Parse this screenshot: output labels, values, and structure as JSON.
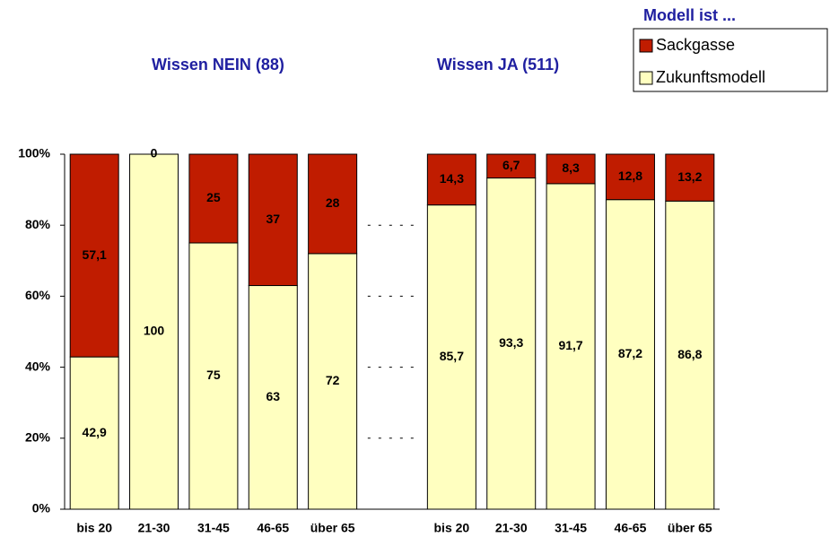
{
  "chart_data": {
    "type": "stacked_bar",
    "annotations": [
      "Wissen NEIN (88)",
      "Wissen JA (511)"
    ],
    "legend_title": "Modell ist ...",
    "legend": "top-right",
    "categories": [
      "bis 20",
      "21-30",
      "31-45",
      "46-65",
      "über 65",
      null,
      "bis 20",
      "21-30",
      "31-45",
      "46-65",
      "über 65"
    ],
    "series": [
      {
        "name": "Zukunftsmodell",
        "color": "#ffffc0",
        "values": [
          42.9,
          100,
          75,
          63,
          72,
          null,
          85.7,
          93.3,
          91.7,
          87.2,
          86.8
        ],
        "value_labels": [
          "42,9",
          "100",
          "75",
          "63",
          "72",
          null,
          "85,7",
          "93,3",
          "91,7",
          "87,2",
          "86,8"
        ]
      },
      {
        "name": "Sackgasse",
        "color": "#c01c00",
        "values": [
          57.1,
          0,
          25,
          37,
          28,
          null,
          14.3,
          6.7,
          8.3,
          12.8,
          13.2
        ],
        "value_labels": [
          "57,1",
          "0",
          "25",
          "37",
          "28",
          null,
          "14,3",
          "6,7",
          "8,3",
          "12,8",
          "13,2"
        ]
      }
    ],
    "ylim": [
      0,
      100
    ],
    "yticks": [
      {
        "value": 0,
        "label": "0%"
      },
      {
        "value": 20,
        "label": "20%"
      },
      {
        "value": 40,
        "label": "40%"
      },
      {
        "value": 60,
        "label": "60%"
      },
      {
        "value": 80,
        "label": "80%"
      },
      {
        "value": 100,
        "label": "100%"
      }
    ]
  }
}
